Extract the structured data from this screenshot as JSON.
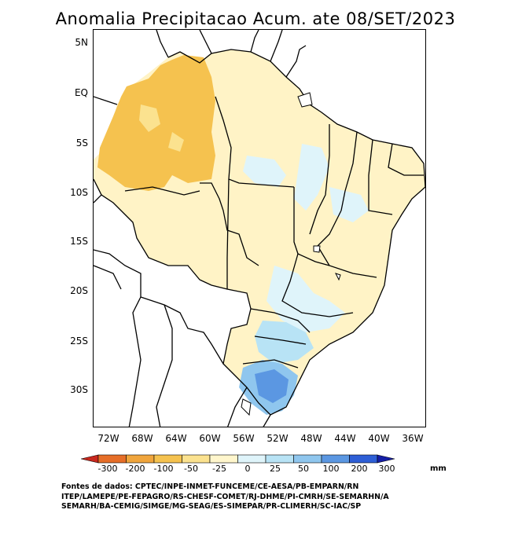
{
  "title": "Anomalia Precipitacao Acum. ate 08/SET/2023",
  "map": {
    "lat_labels": [
      "5N",
      "EQ",
      "5S",
      "10S",
      "15S",
      "20S",
      "25S",
      "30S"
    ],
    "lon_labels": [
      "72W",
      "68W",
      "64W",
      "60W",
      "56W",
      "52W",
      "48W",
      "44W",
      "40W",
      "36W"
    ]
  },
  "legend": {
    "tick_labels": [
      "-300",
      "-200",
      "-100",
      "-50",
      "-25",
      "0",
      "25",
      "50",
      "100",
      "200",
      "300"
    ],
    "unit": "mm",
    "colors": [
      "#c8281e",
      "#e66e28",
      "#f0a53c",
      "#f5c24f",
      "#fbe28f",
      "#fff6cc",
      "#dff4fa",
      "#b8e3f5",
      "#8fc6ee",
      "#5b97e2",
      "#2e5fd6",
      "#151ea6"
    ]
  },
  "sources": [
    "Fontes de dados: CPTEC/INPE-INMET-FUNCEME/CE-AESA/PB-EMPARN/RN",
    "ITEP/LAMEPE/PE-FEPAGRO/RS-CHESF-COMET/RJ-DHME/PI-CMRH/SE-SEMARHN/A",
    "SEMARH/BA-CEMIG/SIMGE/MG-SEAG/ES-SIMEPAR/PR-CLIMERH/SC-IAC/SP"
  ]
}
